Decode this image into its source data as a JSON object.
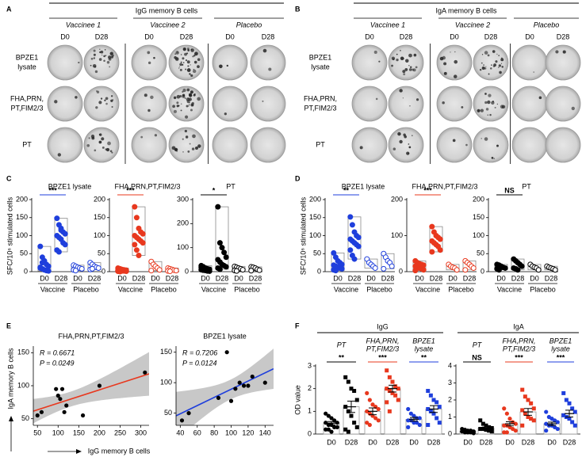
{
  "panel_labels": [
    "A",
    "B",
    "C",
    "D",
    "E",
    "F"
  ],
  "wells": [
    {
      "header": "IgG memory B cells",
      "groups": [
        "Vaccinee 1",
        "Vaccinee 2",
        "Placebo"
      ],
      "timepoints": [
        "D0",
        "D28",
        "D0",
        "D28",
        "D0",
        "D28"
      ],
      "rows": [
        {
          "label": [
            "BPZE1",
            "lysate"
          ],
          "color": "#1f3fdc"
        },
        {
          "label": [
            "FHA,PRN,",
            "PT,FIM2/3"
          ],
          "color": "#e8381e"
        },
        {
          "label": [
            "PT"
          ],
          "color": "#000000"
        }
      ]
    },
    {
      "header": "IgA memory B cells",
      "groups": [
        "Vaccinee 1",
        "Vaccinee 2",
        "Placebo"
      ],
      "timepoints": [
        "D0",
        "D28",
        "D0",
        "D28",
        "D0",
        "D28"
      ],
      "rows": [
        {
          "label": [
            "BPZE1",
            "lysate"
          ],
          "color": "#1f3fdc"
        },
        {
          "label": [
            "FHA,PRN,",
            "PT,FIM2/3"
          ],
          "color": "#e8381e"
        },
        {
          "label": [
            "PT"
          ],
          "color": "#000000"
        }
      ]
    }
  ],
  "chart_data": [
    {
      "type": "strip",
      "title": "BPZE1 lysate",
      "color": "#1f3fdc",
      "y_label": "SFC/10⁶ stimulated cells",
      "categories": [
        "D0",
        "D28",
        "D0",
        "D28"
      ],
      "groups": [
        "Vaccine",
        "Placebo"
      ],
      "filled": [
        true,
        true,
        false,
        false
      ],
      "values": [
        [
          70,
          40,
          30,
          20,
          15,
          10,
          8,
          5,
          3,
          2,
          12,
          25
        ],
        [
          148,
          130,
          120,
          110,
          105,
          100,
          95,
          90,
          80,
          75,
          60,
          55,
          115
        ],
        [
          18,
          15,
          12,
          10,
          8,
          5,
          3
        ],
        [
          25,
          20,
          15,
          12,
          10,
          6,
          8
        ]
      ],
      "significance": "***",
      "ylim": [
        0,
        200
      ],
      "yticks": [
        0,
        50,
        100,
        150,
        200
      ]
    },
    {
      "type": "strip",
      "title": "FHA,PRN,PT,FIM2/3",
      "color": "#e8381e",
      "categories": [
        "D0",
        "D28",
        "D0",
        "D28"
      ],
      "groups": [
        "Vaccine",
        "Placebo"
      ],
      "filled": [
        true,
        true,
        false,
        false
      ],
      "values": [
        [
          10,
          8,
          6,
          5,
          4,
          3,
          3,
          2,
          2,
          1,
          1,
          0,
          5
        ],
        [
          180,
          150,
          120,
          110,
          105,
          100,
          95,
          90,
          85,
          80,
          75,
          60,
          45
        ],
        [
          28,
          20,
          15,
          10,
          5,
          3
        ],
        [
          10,
          8,
          6,
          4,
          3,
          2,
          1
        ]
      ],
      "significance": "***",
      "ylim": [
        0,
        200
      ],
      "yticks": [
        0,
        50,
        100,
        150,
        200
      ]
    },
    {
      "type": "strip",
      "title": "PT",
      "color": "#000000",
      "categories": [
        "D0",
        "D28",
        "D0",
        "D28"
      ],
      "groups": [
        "Vaccine",
        "Placebo"
      ],
      "filled": [
        true,
        true,
        false,
        false
      ],
      "values": [
        [
          25,
          20,
          15,
          12,
          10,
          8,
          6,
          5,
          3,
          2,
          18,
          20
        ],
        [
          270,
          120,
          100,
          80,
          60,
          50,
          40,
          30,
          25,
          20,
          15,
          10
        ],
        [
          22,
          18,
          15,
          12,
          8,
          5,
          3
        ],
        [
          20,
          18,
          15,
          10,
          6,
          4
        ]
      ],
      "significance": "*",
      "ylim": [
        0,
        300
      ],
      "yticks": [
        0,
        100,
        200,
        300
      ]
    },
    {
      "type": "strip",
      "title": "BPZE1 lysate",
      "color": "#1f3fdc",
      "y_label": "SFC/10⁶ stimulated cells",
      "categories": [
        "D0",
        "D28",
        "D0",
        "D28"
      ],
      "groups": [
        "Vaccine",
        "Placebo"
      ],
      "filled": [
        true,
        true,
        false,
        false
      ],
      "values": [
        [
          52,
          40,
          30,
          25,
          20,
          18,
          15,
          12,
          10,
          8,
          5,
          3
        ],
        [
          152,
          130,
          110,
          100,
          95,
          90,
          85,
          80,
          75,
          70,
          60,
          45,
          35
        ],
        [
          35,
          25,
          20,
          15,
          10
        ],
        [
          50,
          40,
          30,
          25,
          15,
          8
        ]
      ],
      "significance": "**",
      "ylim": [
        0,
        200
      ],
      "yticks": [
        0,
        50,
        100,
        150,
        200
      ]
    },
    {
      "type": "strip",
      "title": "FHA,PRN,PT,FIM2/3",
      "color": "#e8381e",
      "categories": [
        "D0",
        "D28",
        "D0",
        "D28"
      ],
      "groups": [
        "Vaccine",
        "Placebo"
      ],
      "filled": [
        true,
        true,
        false,
        false
      ],
      "values": [
        [
          30,
          25,
          22,
          20,
          18,
          15,
          12,
          10,
          8,
          5,
          3
        ],
        [
          125,
          110,
          100,
          95,
          90,
          85,
          80,
          75,
          70,
          60,
          55
        ],
        [
          20,
          15,
          12,
          10,
          5
        ],
        [
          30,
          25,
          20,
          15,
          10,
          5
        ]
      ],
      "significance": "***",
      "ylim": [
        0,
        200
      ],
      "yticks": [
        0,
        100,
        200
      ]
    },
    {
      "type": "strip",
      "title": "PT",
      "color": "#000000",
      "categories": [
        "D0",
        "D28",
        "D0",
        "D28"
      ],
      "groups": [
        "Vaccine",
        "Placebo"
      ],
      "filled": [
        true,
        true,
        false,
        false
      ],
      "values": [
        [
          20,
          18,
          15,
          12,
          10,
          8,
          5
        ],
        [
          35,
          30,
          25,
          20,
          15,
          10,
          8,
          5
        ],
        [
          20,
          15,
          12,
          10,
          5
        ],
        [
          15,
          12,
          10,
          8,
          5
        ]
      ],
      "significance": "NS",
      "ylim": [
        0,
        200
      ],
      "yticks": [
        0,
        50,
        100,
        150,
        200
      ]
    },
    {
      "type": "scatter",
      "title": "FHA,PRN,PT,FIM2/3",
      "color": "#e8381e",
      "y_label": "IgA memory B cells",
      "x_label": "IgG memory B cells",
      "annotations": [
        "R = 0.6671",
        "P = 0.0249"
      ],
      "x": [
        50,
        60,
        100,
        105,
        110,
        115,
        120,
        160,
        200,
        310,
        95
      ],
      "values": [
        55,
        60,
        85,
        80,
        95,
        60,
        70,
        55,
        100,
        120,
        95
      ],
      "xlim": [
        40,
        320
      ],
      "xticks": [
        50,
        100,
        150,
        200,
        250,
        300
      ],
      "ylim": [
        40,
        160
      ],
      "yticks": [
        50,
        100,
        150
      ]
    },
    {
      "type": "scatter",
      "title": "BPZE1 lysate",
      "color": "#1f3fdc",
      "annotations": [
        "R = 0.7206",
        "P = 0.0124"
      ],
      "x": [
        42,
        50,
        85,
        95,
        100,
        105,
        110,
        115,
        120,
        125,
        140
      ],
      "values": [
        38,
        50,
        75,
        150,
        70,
        90,
        100,
        95,
        95,
        110,
        100
      ],
      "xlim": [
        35,
        150
      ],
      "xticks": [
        40,
        60,
        80,
        100,
        120,
        140
      ],
      "ylim": [
        30,
        160
      ],
      "yticks": [
        50,
        100,
        150
      ]
    },
    {
      "type": "bar",
      "title": "IgG",
      "y_label": "OD value",
      "group_labels": [
        [
          "PT"
        ],
        [
          "FHA,PRN,",
          "PT,FIM2/3"
        ],
        [
          "BPZE1",
          "lysate"
        ]
      ],
      "group_colors": [
        "#000000",
        "#e8381e",
        "#1f3fdc"
      ],
      "categories": [
        "D0",
        "D28",
        "D0",
        "D28",
        "D0",
        "D28"
      ],
      "values": [
        [
          0.9,
          0.8,
          0.7,
          0.6,
          0.5,
          0.5,
          0.4,
          0.4,
          0.3,
          0.3,
          0.2,
          0.2,
          0.1
        ],
        [
          2.5,
          2.3,
          2.0,
          1.9,
          1.5,
          1.2,
          1.0,
          0.8,
          0.5,
          0.3,
          0.2,
          0.1
        ],
        [
          1.8,
          1.5,
          1.3,
          1.2,
          1.1,
          1.0,
          0.9,
          0.8,
          0.7,
          0.6,
          0.5,
          0.4
        ],
        [
          2.8,
          2.5,
          2.3,
          2.1,
          2.0,
          2.0,
          1.9,
          1.8,
          1.7,
          1.5,
          1.4,
          1.0
        ],
        [
          1.1,
          0.9,
          0.8,
          0.7,
          0.7,
          0.6,
          0.6,
          0.5,
          0.5,
          0.4,
          0.3
        ],
        [
          1.9,
          1.7,
          1.5,
          1.4,
          1.2,
          1.1,
          1.0,
          0.9,
          0.7,
          0.5,
          0.4
        ]
      ],
      "means": [
        0.48,
        1.2,
        1.0,
        2.0,
        0.65,
        1.1
      ],
      "errors": [
        0.07,
        0.25,
        0.15,
        0.15,
        0.08,
        0.15
      ],
      "significance": [
        "**",
        "***",
        "**"
      ],
      "ylim": [
        0,
        3
      ],
      "yticks": [
        0,
        1,
        2,
        3
      ]
    },
    {
      "type": "bar",
      "title": "IgA",
      "group_labels": [
        [
          "PT"
        ],
        [
          "FHA,PRN,",
          "PT,FIM2/3"
        ],
        [
          "BPZE1",
          "lysate"
        ]
      ],
      "group_colors": [
        "#000000",
        "#e8381e",
        "#1f3fdc"
      ],
      "categories": [
        "D0",
        "D28",
        "D0",
        "D28",
        "D0",
        "D28"
      ],
      "values": [
        [
          0.3,
          0.25,
          0.2,
          0.2,
          0.15,
          0.15,
          0.1,
          0.1,
          0.1,
          0.05
        ],
        [
          0.8,
          0.6,
          0.5,
          0.4,
          0.35,
          0.3,
          0.3,
          0.25,
          0.2,
          0.15
        ],
        [
          1.5,
          1.2,
          0.9,
          0.7,
          0.6,
          0.5,
          0.5,
          0.4,
          0.3,
          0.2,
          0.1,
          0.1
        ],
        [
          2.6,
          2.2,
          2.0,
          1.8,
          1.5,
          1.4,
          1.2,
          1.0,
          0.9,
          0.8,
          0.5
        ],
        [
          1.3,
          1.0,
          0.9,
          0.8,
          0.7,
          0.6,
          0.5,
          0.5,
          0.4,
          0.3,
          0.2
        ],
        [
          2.4,
          2.0,
          1.8,
          1.5,
          1.3,
          1.1,
          1.0,
          0.9,
          0.7,
          0.5
        ]
      ],
      "means": [
        0.18,
        0.35,
        0.6,
        1.3,
        0.6,
        1.2
      ],
      "errors": [
        0.03,
        0.06,
        0.12,
        0.2,
        0.1,
        0.2
      ],
      "significance": [
        "NS",
        "***",
        "***"
      ],
      "ylim": [
        0,
        4
      ],
      "yticks": [
        0,
        1,
        2,
        3,
        4
      ]
    }
  ]
}
